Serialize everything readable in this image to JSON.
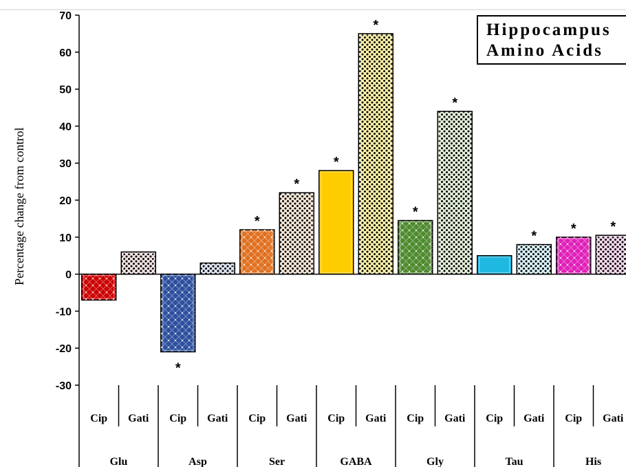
{
  "chart_data": {
    "type": "bar",
    "title": [
      "Hippocampus",
      "Amino Acids"
    ],
    "ylabel": "Percentage change from control",
    "ylim": [
      -30,
      70
    ],
    "yticks": [
      70,
      60,
      50,
      40,
      30,
      20,
      10,
      0,
      -10,
      -20,
      -30
    ],
    "groups": [
      "Glu",
      "Asp",
      "Ser",
      "GABA",
      "Gly",
      "Tau",
      "His"
    ],
    "subcategories": [
      "Cip",
      "Gati"
    ],
    "bars": [
      {
        "group": "Glu",
        "drug": "Cip",
        "value": -7,
        "significant": false,
        "color": "#cc0000",
        "pattern": "diamond"
      },
      {
        "group": "Glu",
        "drug": "Gati",
        "value": 6,
        "significant": false,
        "color": "#f0e0e0",
        "pattern": "dots"
      },
      {
        "group": "Asp",
        "drug": "Cip",
        "value": -21,
        "significant": true,
        "color": "#2d4f9e",
        "pattern": "diamond"
      },
      {
        "group": "Asp",
        "drug": "Gati",
        "value": 3,
        "significant": false,
        "color": "#dde3f2",
        "pattern": "dots"
      },
      {
        "group": "Ser",
        "drug": "Cip",
        "value": 12,
        "significant": true,
        "color": "#e07020",
        "pattern": "diamond"
      },
      {
        "group": "Ser",
        "drug": "Gati",
        "value": 22,
        "significant": true,
        "color": "#f5e6d6",
        "pattern": "dots"
      },
      {
        "group": "GABA",
        "drug": "Cip",
        "value": 28,
        "significant": true,
        "color": "#ffcc00",
        "pattern": "solid"
      },
      {
        "group": "GABA",
        "drug": "Gati",
        "value": 65,
        "significant": true,
        "color": "#fff2a8",
        "pattern": "dots"
      },
      {
        "group": "Gly",
        "drug": "Cip",
        "value": 14.5,
        "significant": true,
        "color": "#4e8a2e",
        "pattern": "diamond"
      },
      {
        "group": "Gly",
        "drug": "Gati",
        "value": 44,
        "significant": true,
        "color": "#e3efd8",
        "pattern": "dots"
      },
      {
        "group": "Tau",
        "drug": "Cip",
        "value": 5,
        "significant": false,
        "color": "#1fb8e0",
        "pattern": "solid"
      },
      {
        "group": "Tau",
        "drug": "Gati",
        "value": 8,
        "significant": true,
        "color": "#d8f1f8",
        "pattern": "dots"
      },
      {
        "group": "His",
        "drug": "Cip",
        "value": 10,
        "significant": true,
        "color": "#e020b8",
        "pattern": "diamond"
      },
      {
        "group": "His",
        "drug": "Gati",
        "value": 10.5,
        "significant": true,
        "color": "#f5d8ee",
        "pattern": "dots"
      }
    ],
    "significance_marker": "*",
    "grid": false,
    "legend": "none"
  }
}
